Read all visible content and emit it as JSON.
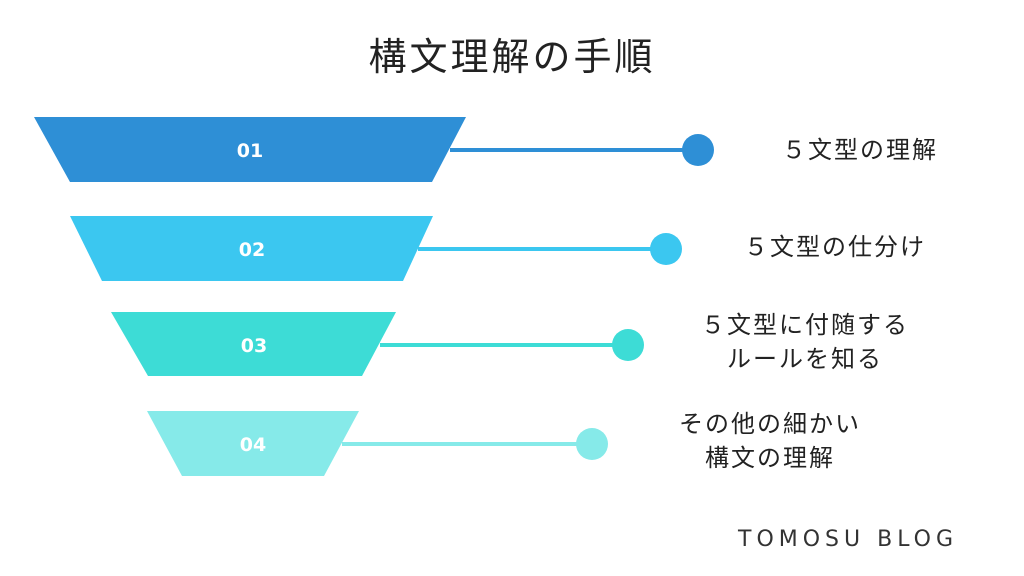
{
  "title": "構文理解の手順",
  "stages": [
    {
      "number": "01",
      "label_lines": [
        "５文型の理解"
      ],
      "color": "#2E8FD6"
    },
    {
      "number": "02",
      "label_lines": [
        "５文型の仕分け"
      ],
      "color": "#3BC7F0"
    },
    {
      "number": "03",
      "label_lines": [
        "５文型に付随する",
        "ルールを知る"
      ],
      "color": "#3DDCD6"
    },
    {
      "number": "04",
      "label_lines": [
        "その他の細かい",
        "構文の理解"
      ],
      "color": "#86EAE9"
    }
  ],
  "brand": "TOMOSU BLOG"
}
